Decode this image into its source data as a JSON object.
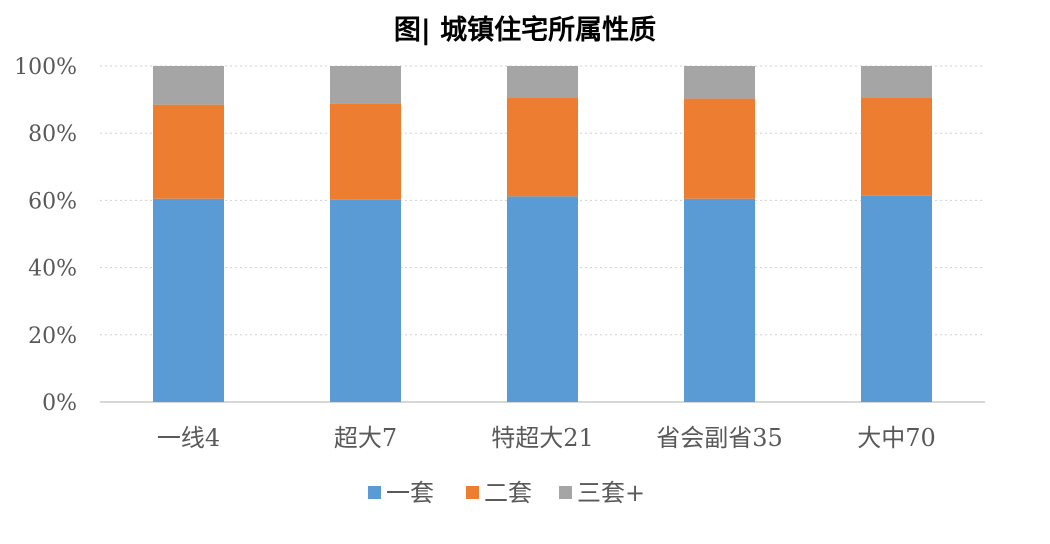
{
  "chart_data": {
    "type": "bar",
    "stacked": true,
    "title": "图| 城镇住宅所属性质",
    "xlabel": "",
    "ylabel": "",
    "ylim": [
      0,
      100
    ],
    "y_ticks": [
      "0%",
      "20%",
      "40%",
      "60%",
      "80%",
      "100%"
    ],
    "categories": [
      "一线4",
      "超大7",
      "特超大21",
      "省会副省35",
      "大中70"
    ],
    "series": [
      {
        "name": "一套",
        "color": "#5b9bd5",
        "values": [
          60.5,
          60.2,
          61.2,
          60.5,
          61.4
        ]
      },
      {
        "name": "二套",
        "color": "#ed7d31",
        "values": [
          28.0,
          28.6,
          29.5,
          29.8,
          29.2
        ]
      },
      {
        "name": "三套+",
        "color": "#a5a5a5",
        "values": [
          11.5,
          11.2,
          9.3,
          9.7,
          9.4
        ]
      }
    ],
    "grid": true,
    "legend": "bottom"
  }
}
